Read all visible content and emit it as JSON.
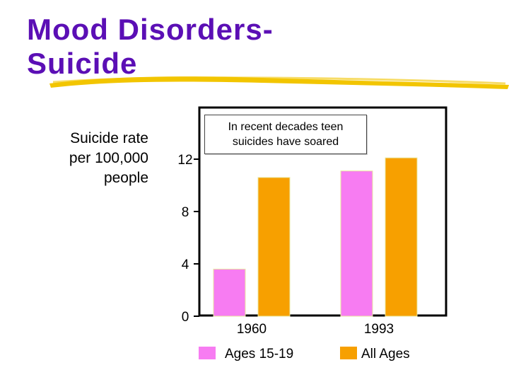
{
  "slide": {
    "title_line1": "Mood Disorders-",
    "title_line2": "Suicide",
    "title_color": "#5b0fb5",
    "underline_color": "#f2c500"
  },
  "chart_data": {
    "type": "bar",
    "categories": [
      "1960",
      "1993"
    ],
    "series": [
      {
        "name": "Ages 15-19",
        "values": [
          3.6,
          11.1
        ],
        "color": "#f77cf2"
      },
      {
        "name": "All Ages",
        "values": [
          10.6,
          12.1
        ],
        "color": "#f7a000"
      }
    ],
    "ylabel": "Suicide rate\nper 100,000\npeople",
    "yticks": [
      0,
      4,
      8,
      12
    ],
    "ylim": [
      0,
      12.8
    ],
    "annotation": "In recent decades teen suicides have soared",
    "legend_position": "bottom",
    "grid": false
  }
}
